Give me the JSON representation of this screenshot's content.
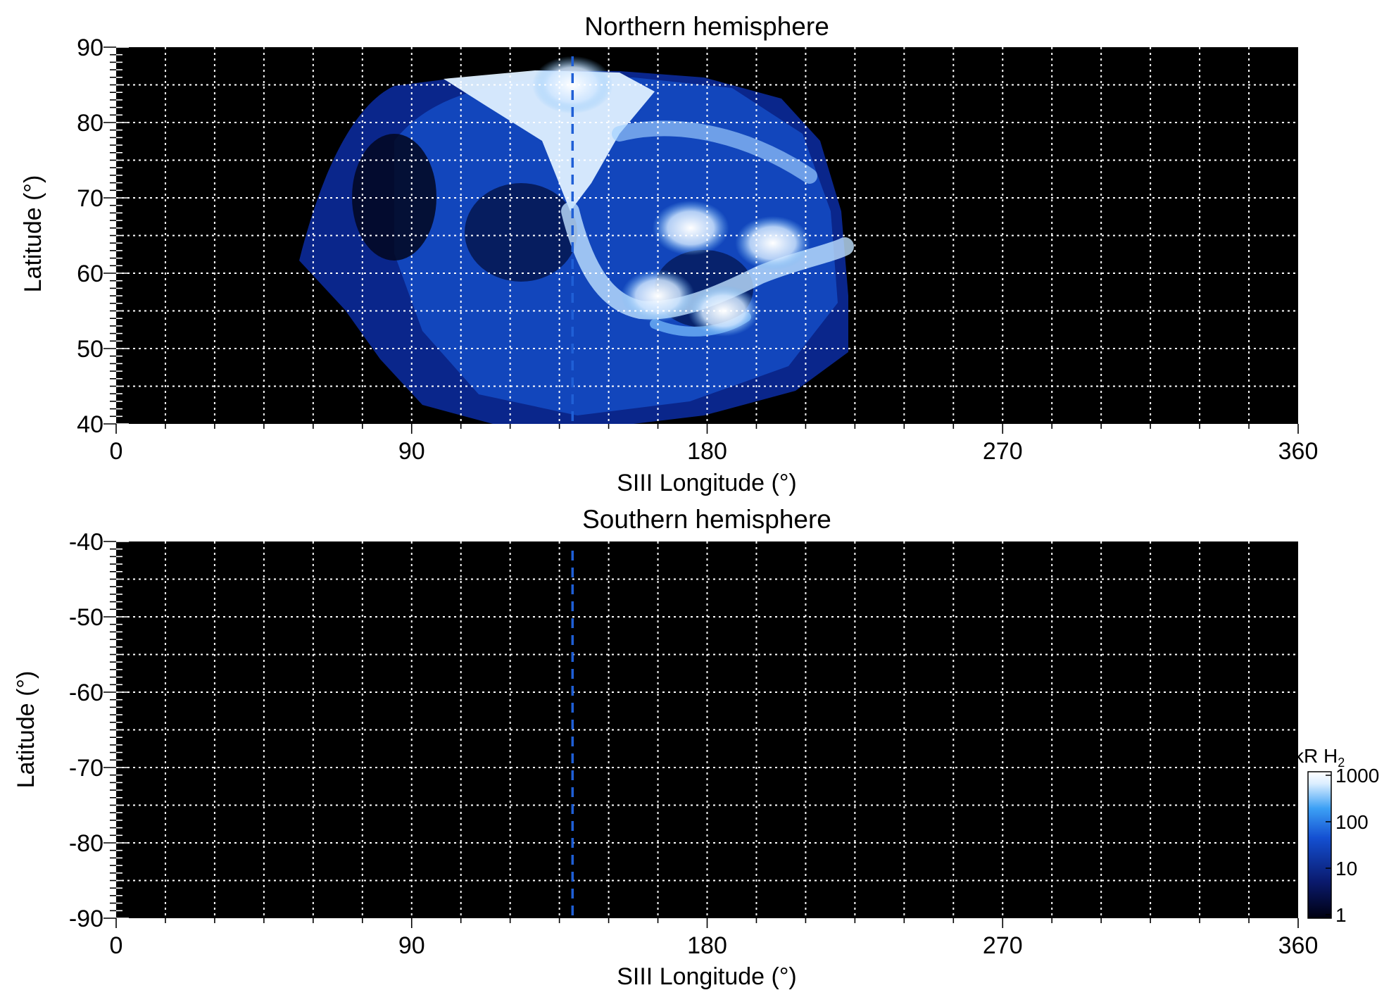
{
  "chart_data": [
    {
      "type": "heatmap",
      "title": "Northern hemisphere",
      "xlabel": "SIII Longitude (°)",
      "ylabel": "Latitude (°)",
      "xlim": [
        0,
        360
      ],
      "ylim": [
        40,
        90
      ],
      "x_ticks": [
        "0",
        "90",
        "180",
        "270",
        "360"
      ],
      "y_ticks": [
        "40",
        "50",
        "60",
        "70",
        "80",
        "90"
      ],
      "grid": true,
      "reference_longitude": 139,
      "emission_coverage": {
        "lon_range": [
          55,
          225
        ],
        "lat_range": [
          40,
          87
        ]
      },
      "bright_features": [
        {
          "lon": 139,
          "lat": 85,
          "level": 1000
        },
        {
          "lon": 175,
          "lat": 66,
          "level": 600
        },
        {
          "lon": 200,
          "lat": 64,
          "level": 500
        },
        {
          "lon": 165,
          "lat": 57,
          "level": 400
        },
        {
          "lon": 185,
          "lat": 55,
          "level": 300
        }
      ]
    },
    {
      "type": "heatmap",
      "title": "Southern hemisphere",
      "xlabel": "SIII Longitude (°)",
      "ylabel": "Latitude (°)",
      "xlim": [
        0,
        360
      ],
      "ylim": [
        -90,
        -40
      ],
      "x_ticks": [
        "0",
        "90",
        "180",
        "270",
        "360"
      ],
      "y_ticks": [
        "-40",
        "-50",
        "-60",
        "-70",
        "-80",
        "-90"
      ],
      "grid": true,
      "reference_longitude": 139
    }
  ],
  "colorbar": {
    "label": "kR H",
    "label_subscript": "2",
    "scale": "log",
    "range": [
      1,
      1000
    ],
    "ticks": [
      "1000",
      "100",
      "10",
      "1"
    ],
    "colors": [
      "#000010",
      "#0a1a6e",
      "#1450d2",
      "#3ca0f5",
      "#dceeff",
      "#ffffff"
    ]
  }
}
